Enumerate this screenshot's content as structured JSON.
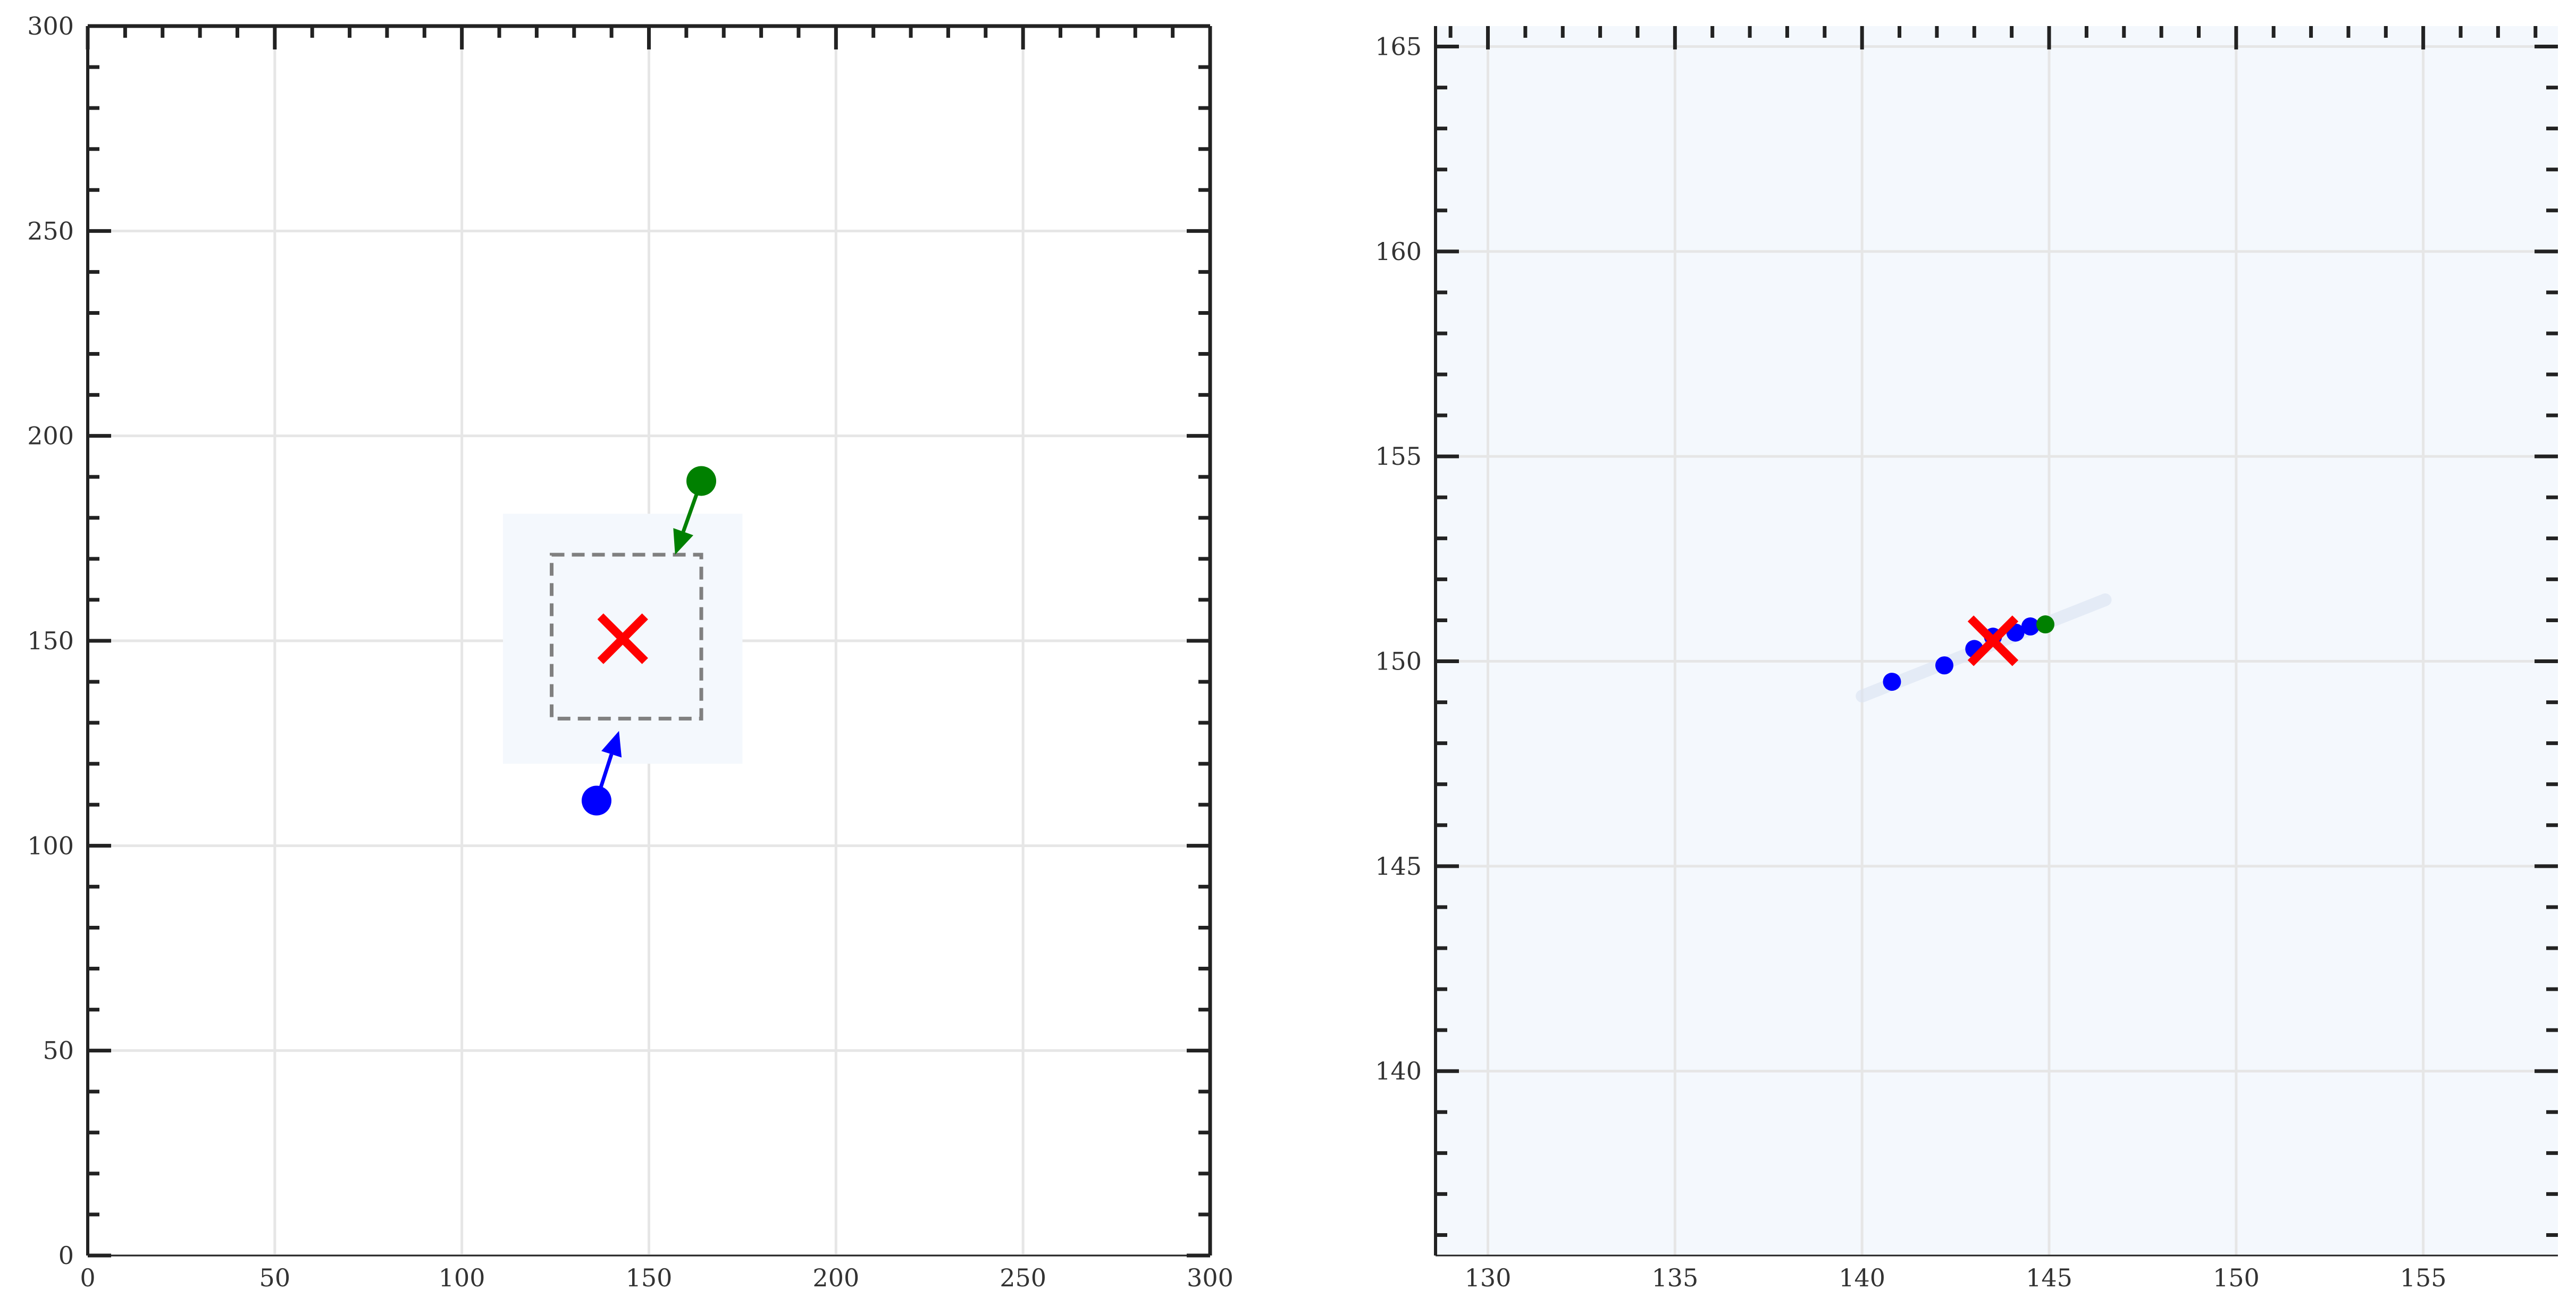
{
  "colors": {
    "start_point": "#0000ff",
    "end_point": "#008000",
    "target_marker": "#ff0000",
    "box_outline": "#808080",
    "region_fill": "#f4f8fd",
    "grid": "#e6e6e6",
    "axis": "#222222"
  },
  "chart_data": [
    {
      "type": "scatter",
      "panel": "left",
      "xlim": [
        0,
        300
      ],
      "ylim": [
        0,
        300
      ],
      "x_ticks": [
        0,
        50,
        100,
        150,
        200,
        250,
        300
      ],
      "y_ticks": [
        0,
        50,
        100,
        150,
        200,
        250,
        300
      ],
      "x_tick_labels": [
        "0",
        "50",
        "100",
        "150",
        "200",
        "250",
        "300"
      ],
      "y_tick_labels": [
        "0",
        "50",
        "100",
        "150",
        "200",
        "250",
        "300"
      ],
      "grid": true,
      "shaded_region": {
        "x": [
          111,
          175
        ],
        "y": [
          120,
          181
        ]
      },
      "dashed_box": {
        "x": [
          124,
          164
        ],
        "y": [
          131,
          171
        ]
      },
      "target": {
        "x": 143,
        "y": 150.5
      },
      "start": {
        "x": 136,
        "y": 111
      },
      "start_arrow_to": {
        "x": 142,
        "y": 128
      },
      "end": {
        "x": 164,
        "y": 189
      },
      "end_arrow_to": {
        "x": 157,
        "y": 171
      }
    },
    {
      "type": "scatter",
      "panel": "right",
      "xlim": [
        128.6,
        158.6
      ],
      "ylim": [
        135.5,
        165.5
      ],
      "x_ticks": [
        130,
        135,
        140,
        145,
        150,
        155
      ],
      "y_ticks": [
        140,
        145,
        150,
        155,
        160,
        165
      ],
      "x_tick_labels": [
        "130",
        "135",
        "140",
        "145",
        "150",
        "155"
      ],
      "y_tick_labels": [
        "140",
        "145",
        "150",
        "155",
        "160",
        "165"
      ],
      "grid": true,
      "path_points": [
        {
          "x": 140.8,
          "y": 149.5
        },
        {
          "x": 142.2,
          "y": 149.9
        },
        {
          "x": 143.0,
          "y": 150.3
        },
        {
          "x": 143.5,
          "y": 150.6
        },
        {
          "x": 144.1,
          "y": 150.7
        },
        {
          "x": 144.5,
          "y": 150.85
        }
      ],
      "target": {
        "x": 143.5,
        "y": 150.5
      },
      "end": {
        "x": 144.9,
        "y": 150.9
      }
    }
  ]
}
